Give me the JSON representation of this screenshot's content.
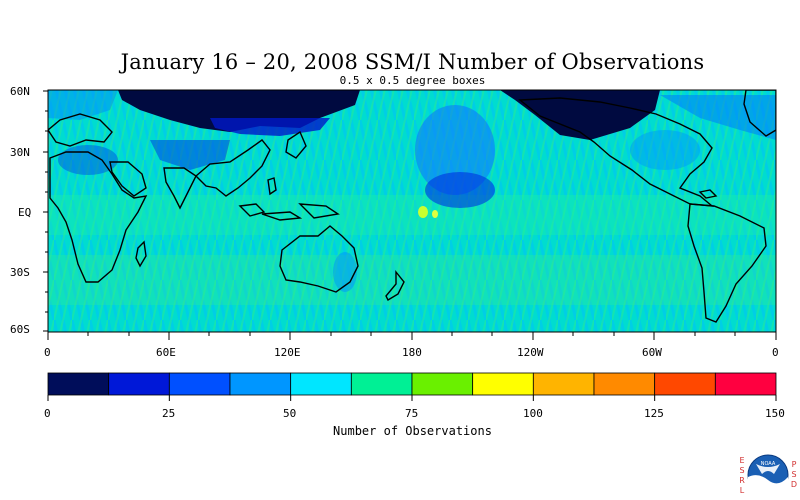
{
  "title": "January 16 – 20, 2008 SSM/I Number of Observations",
  "subtitle": "0.5 x 0.5 degree boxes",
  "lat_labels": [
    "60N",
    "30N",
    "EQ",
    "30S",
    "60S"
  ],
  "lon_labels": [
    "0",
    "60E",
    "120E",
    "180",
    "120W",
    "60W",
    "0"
  ],
  "colorbar": {
    "label": "Number of Observations",
    "ticks": [
      "0",
      "25",
      "50",
      "75",
      "100",
      "125",
      "150"
    ],
    "colors": [
      "#000d5a",
      "#0018d8",
      "#0050ff",
      "#0096ff",
      "#00e6ff",
      "#00f095",
      "#6af000",
      "#ffff00",
      "#ffb400",
      "#ff8a00",
      "#ff4800",
      "#ff0040"
    ]
  },
  "logo": {
    "left_letters": "ESRL",
    "right_letters": "PSD",
    "center_text": "NOAA"
  }
}
